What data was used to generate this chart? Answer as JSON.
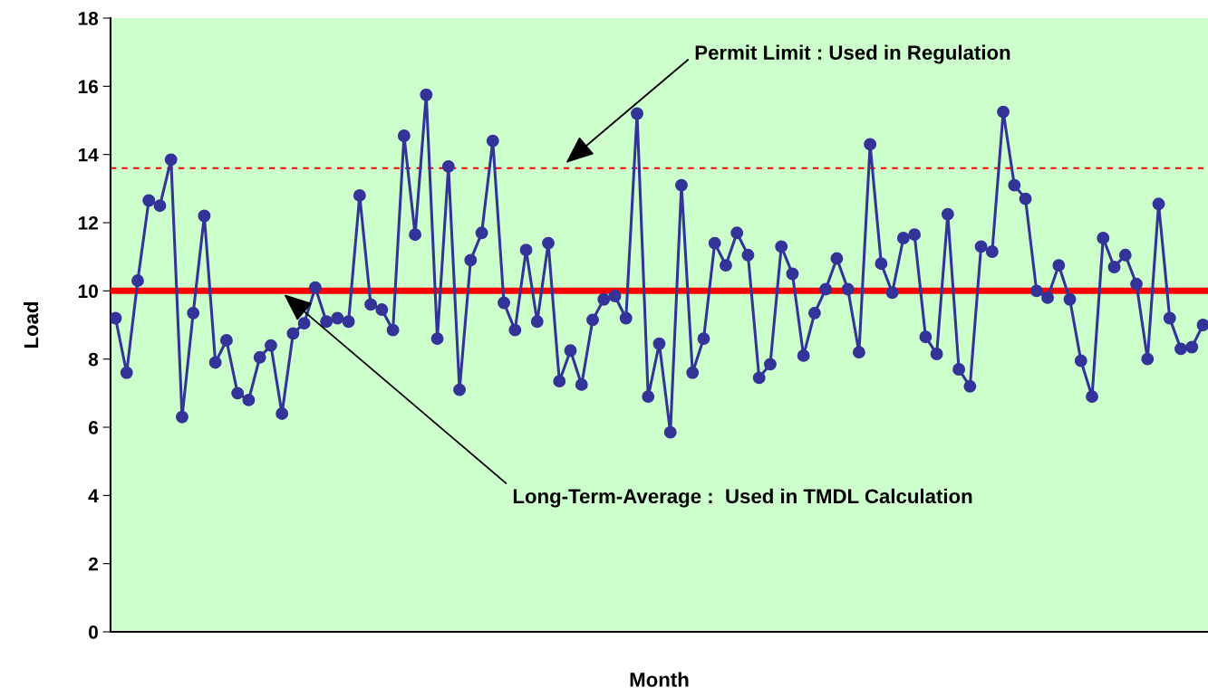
{
  "chart_data": {
    "type": "line",
    "xlabel": "Month",
    "ylabel": "Load",
    "categories": [
      null,
      null,
      null,
      null,
      null,
      null,
      null,
      null,
      null,
      null,
      null,
      null,
      null,
      null,
      null,
      null,
      null,
      null,
      null,
      null,
      null,
      null,
      null,
      null,
      null,
      null,
      null,
      null,
      null,
      null,
      null,
      null,
      null,
      null,
      null,
      null,
      null,
      null,
      null,
      null,
      null,
      null,
      null,
      null,
      null,
      null,
      null,
      null,
      null,
      null,
      null,
      null,
      null,
      null,
      null,
      null,
      null,
      null,
      null,
      null,
      null,
      null,
      null,
      null,
      null,
      null,
      null,
      null,
      null,
      null,
      null,
      null,
      null,
      null,
      null,
      null,
      null,
      null,
      null,
      null,
      null,
      null,
      null,
      null,
      null,
      null,
      null,
      null,
      null,
      null,
      null,
      null,
      null,
      null,
      null,
      null,
      null,
      null,
      null
    ],
    "series": [
      {
        "color": "#333399",
        "values": [
          9.2,
          7.6,
          10.3,
          12.65,
          12.5,
          13.85,
          6.3,
          9.35,
          12.2,
          7.9,
          8.55,
          7.0,
          6.8,
          8.05,
          8.4,
          6.4,
          8.75,
          9.05,
          10.1,
          9.1,
          9.2,
          9.1,
          12.8,
          9.6,
          9.45,
          8.85,
          14.55,
          11.65,
          15.75,
          8.6,
          13.65,
          7.1,
          10.9,
          11.7,
          14.4,
          9.65,
          8.85,
          11.2,
          9.1,
          11.4,
          7.35,
          8.25,
          7.25,
          9.15,
          9.75,
          9.85,
          9.2,
          15.2,
          6.9,
          8.45,
          5.85,
          13.1,
          7.6,
          8.6,
          11.4,
          10.75,
          11.7,
          11.05,
          7.45,
          7.85,
          11.3,
          10.5,
          8.1,
          9.35,
          10.05,
          10.95,
          10.05,
          8.2,
          14.3,
          10.8,
          9.95,
          11.55,
          11.65,
          8.65,
          8.15,
          12.25,
          7.7,
          7.2,
          11.3,
          11.15,
          15.25,
          13.1,
          12.7,
          10.0,
          9.8,
          10.75,
          9.75,
          7.95,
          6.9,
          11.55,
          10.7,
          11.05,
          10.2,
          8.0,
          12.55,
          9.2,
          8.3,
          8.35,
          9.0
        ]
      }
    ],
    "ylim": [
      0,
      18
    ],
    "yticks": [
      0,
      2,
      4,
      6,
      8,
      10,
      12,
      14,
      16,
      18
    ],
    "ref_lines": [
      {
        "axis": "y",
        "value": 10,
        "color": "#ff0000",
        "line_style": "solid"
      },
      {
        "axis": "y",
        "value": 13.6,
        "color": "#ff0000",
        "line_style": "dotted"
      }
    ],
    "annotations": [
      "Permit Limit : Used in Regulation",
      "Long-Term-Average :  Used in TMDL Calculation"
    ],
    "marker": "circle",
    "line_style": "solid",
    "grid": false,
    "legend": false,
    "tick_labels": "y"
  }
}
